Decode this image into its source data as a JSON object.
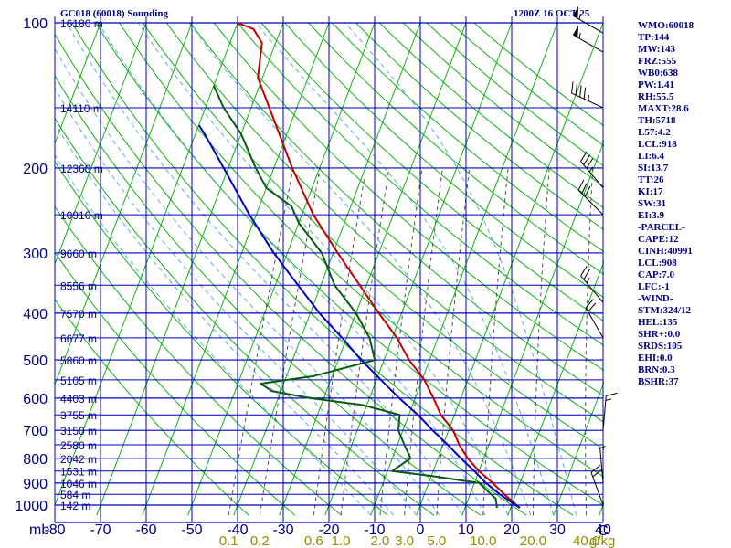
{
  "header": {
    "title": "GC018 (60018) Sounding",
    "time": "1200Z 16 OCT 25"
  },
  "stats": [
    "WMO:60018",
    "TP:144",
    "MW:143",
    "FRZ:555",
    "WB0:638",
    "PW:1.41",
    "RH:55.5",
    "MAXT:28.6",
    "TH:5718",
    "L57:4.2",
    "LCL:918",
    "LI:6.4",
    "SI:13.7",
    "TT:26",
    "KI:17",
    "SW:31",
    "EI:3.9",
    "-PARCEL-",
    "CAPE:12",
    "CINH:40991",
    "LCL:908",
    "CAP:7.0",
    "LFC:-1",
    "-WIND-",
    "STM:324/12",
    "HEL:135",
    "SHR+:0.0",
    "SRDS:105",
    "EHI:0.0",
    "BRN:0.3",
    "BSHR:37"
  ],
  "chart_data": {
    "type": "line",
    "title": "GC018 (60018) Sounding",
    "y_unit_label": "mb",
    "x_unit_label": "C",
    "pressure_ticks": [
      100,
      200,
      300,
      400,
      500,
      600,
      700,
      800,
      900,
      1000
    ],
    "temperature_ticks": [
      -80,
      -70,
      -60,
      -50,
      -40,
      -30,
      -20,
      -10,
      0,
      10,
      20,
      30,
      40
    ],
    "mixing_ratio_labels": [
      "0.1",
      "0.2",
      "0.6",
      "1.0",
      "2.0",
      "3.0",
      "5.0",
      "10.0",
      "20.0",
      "40.0"
    ],
    "mixing_ratio_unit": "g/kg",
    "height_labels": [
      {
        "p": 100,
        "label": "16180 m"
      },
      {
        "p": 150,
        "label": "14110 m"
      },
      {
        "p": 200,
        "label": "12360 m"
      },
      {
        "p": 250,
        "label": "10910 m"
      },
      {
        "p": 300,
        "label": "9660 m"
      },
      {
        "p": 350,
        "label": "8556 m"
      },
      {
        "p": 400,
        "label": "7570 m"
      },
      {
        "p": 450,
        "label": "6677 m"
      },
      {
        "p": 500,
        "label": "5860 m"
      },
      {
        "p": 550,
        "label": "5105 m"
      },
      {
        "p": 600,
        "label": "4403 m"
      },
      {
        "p": 650,
        "label": "3755 m"
      },
      {
        "p": 700,
        "label": "3150 m"
      },
      {
        "p": 750,
        "label": "2580 m"
      },
      {
        "p": 800,
        "label": "2042 m"
      },
      {
        "p": 850,
        "label": "1531 m"
      },
      {
        "p": 900,
        "label": "1046 m"
      },
      {
        "p": 950,
        "label": "584 m"
      },
      {
        "p": 1000,
        "label": "142 m"
      }
    ],
    "y_range": [
      100,
      1050
    ],
    "x_range": [
      -80,
      40
    ],
    "skew_degrees_per_decade": 40,
    "series": [
      {
        "color": "#c00000",
        "points": [
          [
            1013,
            22
          ],
          [
            950,
            17.5
          ],
          [
            900,
            14
          ],
          [
            850,
            10
          ],
          [
            800,
            6.5
          ],
          [
            750,
            3.5
          ],
          [
            700,
            1
          ],
          [
            650,
            -3
          ],
          [
            600,
            -6
          ],
          [
            550,
            -9.5
          ],
          [
            500,
            -14.5
          ],
          [
            450,
            -19
          ],
          [
            400,
            -25
          ],
          [
            350,
            -31.5
          ],
          [
            300,
            -39
          ],
          [
            250,
            -47.5
          ],
          [
            200,
            -56
          ],
          [
            150,
            -66
          ],
          [
            130,
            -71
          ],
          [
            110,
            -73
          ],
          [
            103,
            -76
          ],
          [
            100,
            -80
          ]
        ]
      },
      {
        "color": "#0a5a14",
        "points": [
          [
            1013,
            17
          ],
          [
            970,
            16
          ],
          [
            900,
            11
          ],
          [
            870,
            0
          ],
          [
            850,
            -9
          ],
          [
            800,
            -6
          ],
          [
            750,
            -8.5
          ],
          [
            700,
            -11
          ],
          [
            650,
            -12
          ],
          [
            620,
            -21
          ],
          [
            600,
            -33
          ],
          [
            580,
            -42
          ],
          [
            560,
            -45
          ],
          [
            540,
            -34
          ],
          [
            500,
            -22
          ],
          [
            450,
            -25
          ],
          [
            400,
            -30
          ],
          [
            350,
            -37
          ],
          [
            300,
            -42.5
          ],
          [
            260,
            -50
          ],
          [
            240,
            -53
          ],
          [
            220,
            -60
          ],
          [
            200,
            -64
          ],
          [
            170,
            -70
          ],
          [
            150,
            -76
          ],
          [
            135,
            -80
          ]
        ]
      },
      {
        "color": "#0000c0",
        "points": [
          [
            1013,
            22
          ],
          [
            950,
            16.5
          ],
          [
            900,
            12.5
          ],
          [
            850,
            9
          ],
          [
            800,
            5
          ],
          [
            750,
            1
          ],
          [
            700,
            -3.5
          ],
          [
            650,
            -8
          ],
          [
            600,
            -13.5
          ],
          [
            550,
            -19
          ],
          [
            500,
            -25
          ],
          [
            450,
            -31
          ],
          [
            400,
            -38
          ],
          [
            350,
            -45
          ],
          [
            300,
            -53
          ],
          [
            250,
            -61.5
          ],
          [
            200,
            -71
          ],
          [
            170,
            -78
          ],
          [
            163,
            -80
          ]
        ]
      }
    ],
    "wind_barbs": [
      {
        "p": 1000,
        "dir": 340,
        "kt": 20
      },
      {
        "p": 900,
        "dir": 355,
        "kt": 5
      },
      {
        "p": 700,
        "dir": 5,
        "kt": 15
      },
      {
        "p": 450,
        "dir": 330,
        "kt": 20
      },
      {
        "p": 380,
        "dir": 320,
        "kt": 25
      },
      {
        "p": 250,
        "dir": 315,
        "kt": 30
      },
      {
        "p": 220,
        "dir": 320,
        "kt": 35
      },
      {
        "p": 150,
        "dir": 295,
        "kt": 45
      },
      {
        "p": 115,
        "dir": 300,
        "kt": 55
      },
      {
        "p": 105,
        "dir": 300,
        "kt": 55
      }
    ],
    "grid": true
  }
}
